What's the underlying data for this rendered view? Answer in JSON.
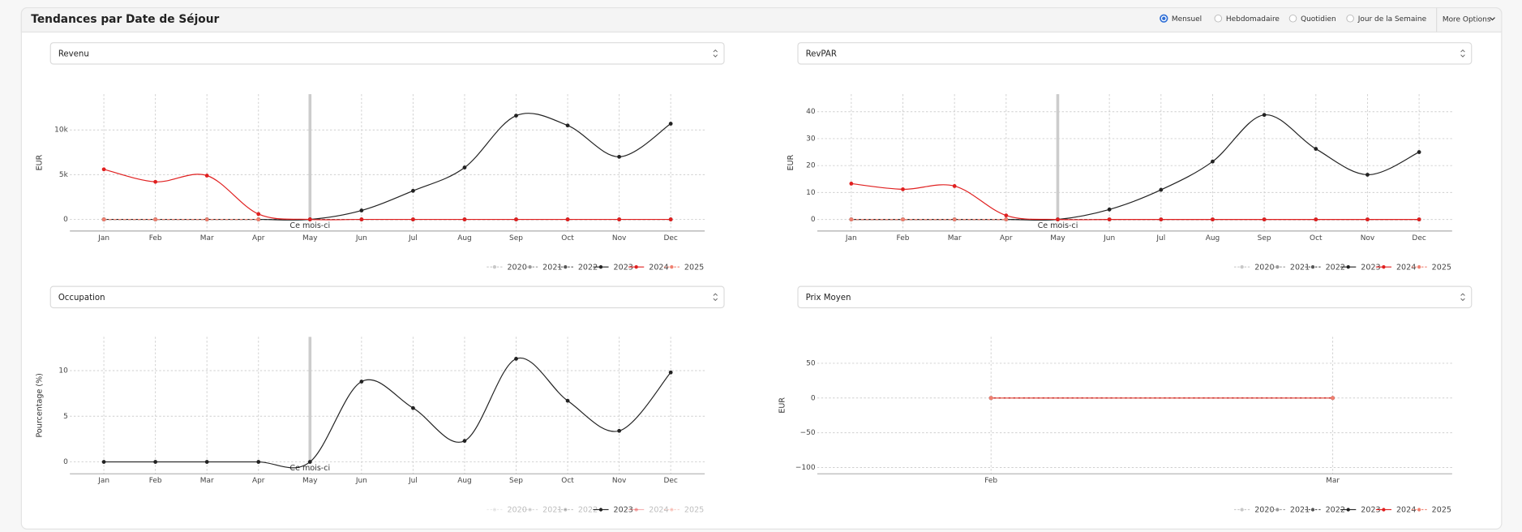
{
  "header": {
    "title": "Tendances par Date de Séjour",
    "period_options": [
      {
        "label": "Mensuel",
        "selected": true
      },
      {
        "label": "Hebdomadaire",
        "selected": false
      },
      {
        "label": "Quotidien",
        "selected": false
      },
      {
        "label": "Jour de la Semaine",
        "selected": false
      }
    ],
    "more_options": "More Options"
  },
  "chart_data": [
    {
      "type": "line",
      "selector": "Revenu",
      "y_label": "EUR",
      "categories": [
        "Jan",
        "Feb",
        "Mar",
        "Apr",
        "May",
        "Jun",
        "Jul",
        "Aug",
        "Sep",
        "Oct",
        "Nov",
        "Dec"
      ],
      "ylim": [
        -1300,
        14000
      ],
      "yticks": [
        0,
        {
          "value": 5000,
          "label": "5k"
        },
        {
          "value": 10000,
          "label": "10k"
        }
      ],
      "grid": true,
      "annotation": {
        "label": "Ce mois-ci",
        "x": "May"
      },
      "series": [
        {
          "name": "2020",
          "color": "#c8c8c8",
          "dash": true,
          "visible": true,
          "values": [
            0,
            0,
            0,
            0,
            0,
            0,
            0,
            0,
            0,
            0,
            0,
            0
          ]
        },
        {
          "name": "2021",
          "color": "#999999",
          "dash": true,
          "visible": true,
          "values": [
            0,
            0,
            0,
            0,
            0,
            0,
            0,
            0,
            0,
            0,
            0,
            0
          ]
        },
        {
          "name": "2022",
          "color": "#555555",
          "dash": true,
          "visible": true,
          "values": [
            0,
            0,
            0,
            0,
            0,
            0,
            0,
            0,
            0,
            0,
            0,
            0
          ]
        },
        {
          "name": "2023",
          "color": "#222222",
          "dash": false,
          "visible": true,
          "values": [
            0,
            0,
            0,
            0,
            0,
            1000,
            3200,
            5800,
            11600,
            10500,
            7000,
            10700
          ]
        },
        {
          "name": "2024",
          "color": "#e02020",
          "dash": false,
          "visible": true,
          "values": [
            5600,
            4200,
            4900,
            600,
            0,
            0,
            0,
            0,
            0,
            0,
            0,
            0
          ]
        },
        {
          "name": "2025",
          "color": "#f08070",
          "dash": true,
          "visible": true,
          "values": [
            0,
            0,
            0,
            0,
            null,
            null,
            null,
            null,
            null,
            null,
            null,
            null
          ]
        }
      ]
    },
    {
      "type": "line",
      "selector": "RevPAR",
      "y_label": "EUR",
      "categories": [
        "Jan",
        "Feb",
        "Mar",
        "Apr",
        "May",
        "Jun",
        "Jul",
        "Aug",
        "Sep",
        "Oct",
        "Nov",
        "Dec"
      ],
      "ylim": [
        -4.3,
        46.5
      ],
      "yticks": [
        0,
        10,
        20,
        30,
        40
      ],
      "grid": true,
      "annotation": {
        "label": "Ce mois-ci",
        "x": "May"
      },
      "series": [
        {
          "name": "2020",
          "color": "#c8c8c8",
          "dash": true,
          "visible": true,
          "values": [
            0,
            0,
            0,
            0,
            0,
            0,
            0,
            0,
            0,
            0,
            0,
            0
          ]
        },
        {
          "name": "2021",
          "color": "#999999",
          "dash": true,
          "visible": true,
          "values": [
            0,
            0,
            0,
            0,
            0,
            0,
            0,
            0,
            0,
            0,
            0,
            0
          ]
        },
        {
          "name": "2022",
          "color": "#555555",
          "dash": true,
          "visible": true,
          "values": [
            0,
            0,
            0,
            0,
            0,
            0,
            0,
            0,
            0,
            0,
            0,
            0
          ]
        },
        {
          "name": "2023",
          "color": "#222222",
          "dash": false,
          "visible": true,
          "values": [
            0,
            0,
            0,
            0,
            0,
            3.7,
            11,
            21.5,
            38.8,
            26.2,
            16.6,
            25
          ]
        },
        {
          "name": "2024",
          "color": "#e02020",
          "dash": false,
          "visible": true,
          "values": [
            13.3,
            11.2,
            12.4,
            1.5,
            0,
            0,
            0,
            0,
            0,
            0,
            0,
            0
          ]
        },
        {
          "name": "2025",
          "color": "#f08070",
          "dash": true,
          "visible": true,
          "values": [
            0,
            0,
            0,
            0,
            null,
            null,
            null,
            null,
            null,
            null,
            null,
            null
          ]
        }
      ]
    },
    {
      "type": "line",
      "selector": "Occupation",
      "y_label": "Pourcentage (%)",
      "categories": [
        "Jan",
        "Feb",
        "Mar",
        "Apr",
        "May",
        "Jun",
        "Jul",
        "Aug",
        "Sep",
        "Oct",
        "Nov",
        "Dec"
      ],
      "ylim": [
        -1.3,
        13.7
      ],
      "yticks": [
        0,
        5,
        10
      ],
      "grid": true,
      "annotation": {
        "label": "Ce mois-ci",
        "x": "May"
      },
      "series": [
        {
          "name": "2020",
          "color": "#c8c8c8",
          "dash": true,
          "visible": false
        },
        {
          "name": "2021",
          "color": "#999999",
          "dash": true,
          "visible": false
        },
        {
          "name": "2022",
          "color": "#555555",
          "dash": true,
          "visible": false
        },
        {
          "name": "2023",
          "color": "#222222",
          "dash": false,
          "visible": true,
          "values": [
            0,
            0,
            0,
            0,
            0,
            8.8,
            5.9,
            2.3,
            11.3,
            6.7,
            3.4,
            9.8
          ]
        },
        {
          "name": "2024",
          "color": "#e02020",
          "dash": false,
          "visible": false
        },
        {
          "name": "2025",
          "color": "#f08070",
          "dash": true,
          "visible": false
        }
      ]
    },
    {
      "type": "line",
      "selector": "Prix Moyen",
      "y_label": "EUR",
      "categories": [
        "Feb",
        "Mar"
      ],
      "ylim": [
        -109,
        88
      ],
      "yticks": [
        {
          "value": -100,
          "label": "−100"
        },
        {
          "value": -50,
          "label": "−50"
        },
        0,
        50
      ],
      "grid": true,
      "series": [
        {
          "name": "2020",
          "color": "#c8c8c8",
          "dash": true,
          "visible": true,
          "values": [
            0,
            0
          ]
        },
        {
          "name": "2021",
          "color": "#999999",
          "dash": true,
          "visible": true,
          "values": [
            0,
            0
          ]
        },
        {
          "name": "2022",
          "color": "#555555",
          "dash": true,
          "visible": true,
          "values": [
            0,
            0
          ]
        },
        {
          "name": "2023",
          "color": "#222222",
          "dash": false,
          "visible": true,
          "values": [
            0,
            0
          ]
        },
        {
          "name": "2024",
          "color": "#e02020",
          "dash": false,
          "visible": true,
          "values": [
            0,
            0
          ]
        },
        {
          "name": "2025",
          "color": "#f08070",
          "dash": true,
          "visible": true,
          "values": [
            0,
            0
          ]
        }
      ]
    }
  ]
}
